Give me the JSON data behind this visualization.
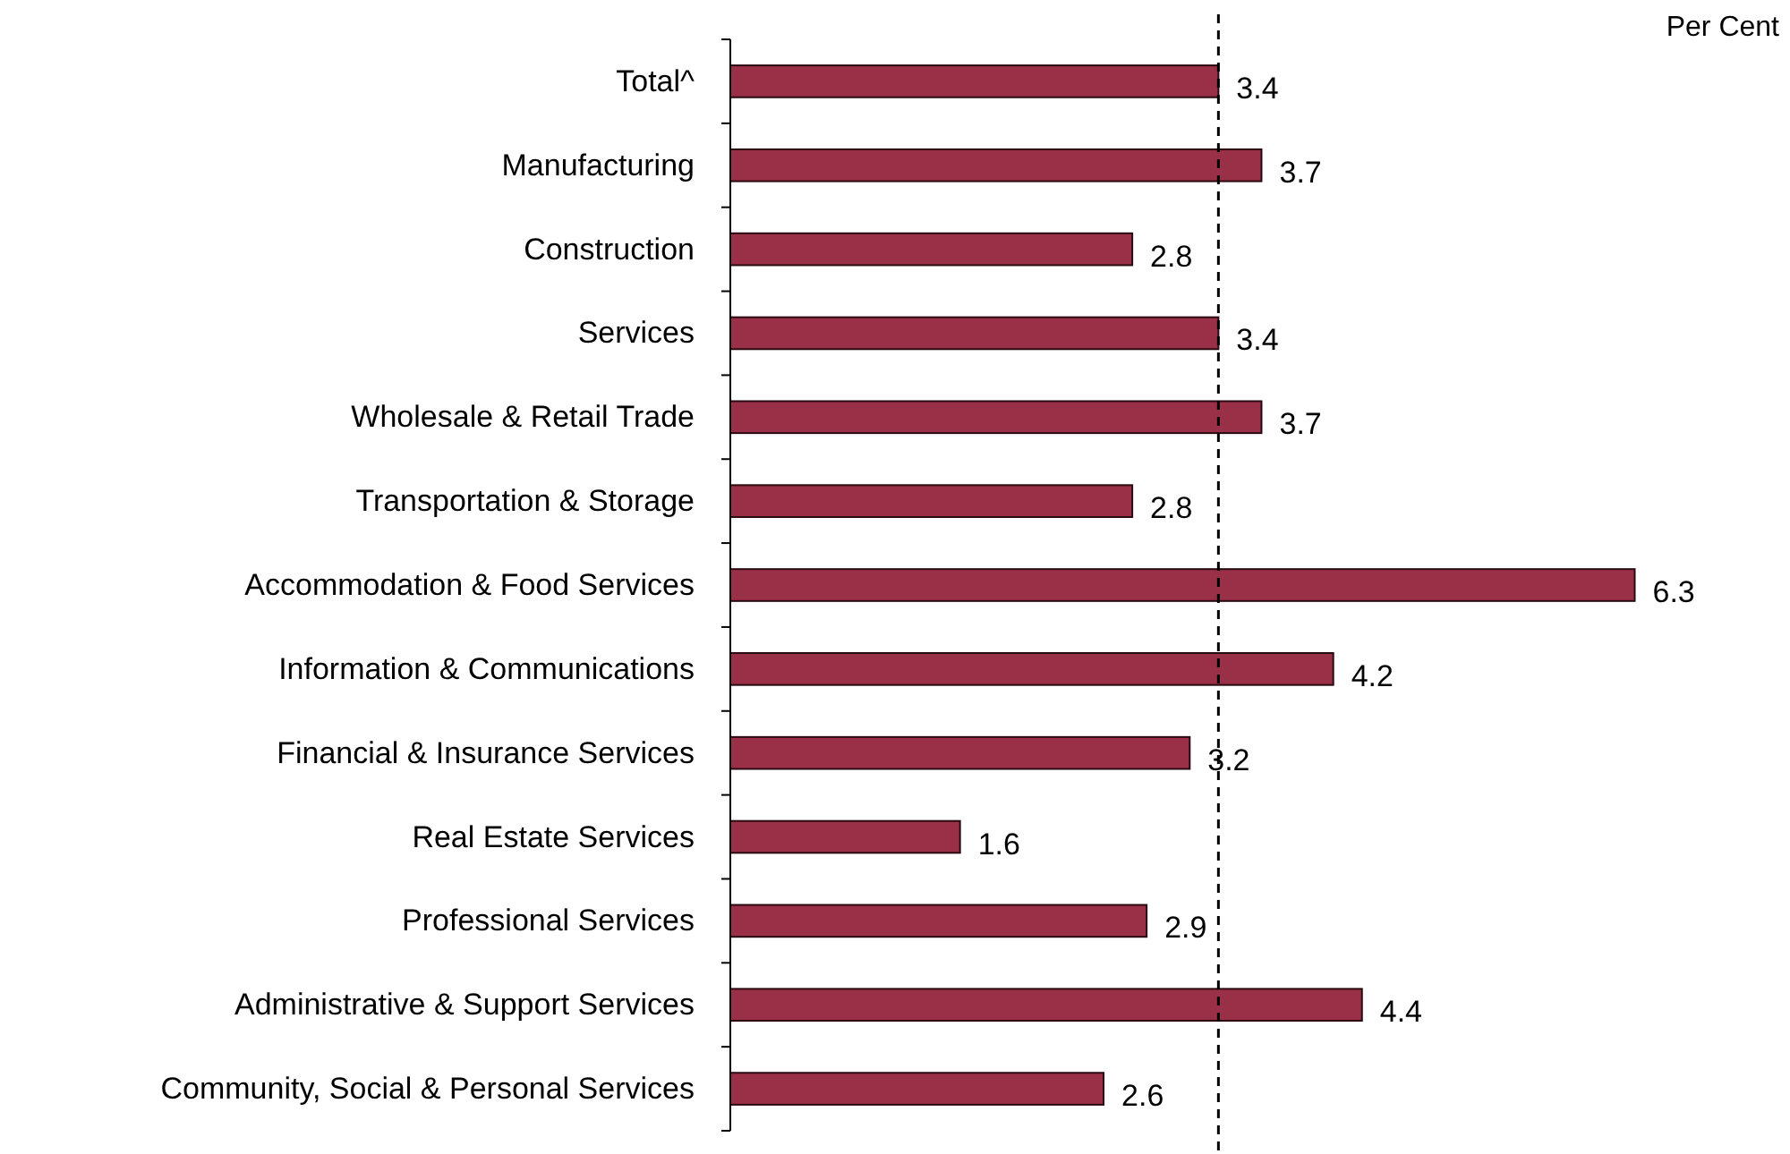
{
  "chart_data": {
    "type": "bar",
    "orientation": "horizontal",
    "xlabel": "Per Cent",
    "categories": [
      "Total^",
      "Manufacturing",
      "Construction",
      "Services",
      "Wholesale & Retail Trade",
      "Transportation & Storage",
      "Accommodation & Food Services",
      "Information & Communications",
      "Financial & Insurance Services",
      "Real Estate Services",
      "Professional Services",
      "Administrative & Support Services",
      "Community, Social & Personal Services"
    ],
    "values": [
      3.4,
      3.7,
      2.8,
      3.4,
      3.7,
      2.8,
      6.3,
      4.2,
      3.2,
      1.6,
      2.9,
      4.4,
      2.6
    ],
    "color": "#993048",
    "data_labels": true,
    "ref_lines": [
      {
        "axis": "x",
        "value": 3.4,
        "line_style": "dashed",
        "color": "#000000"
      }
    ]
  }
}
